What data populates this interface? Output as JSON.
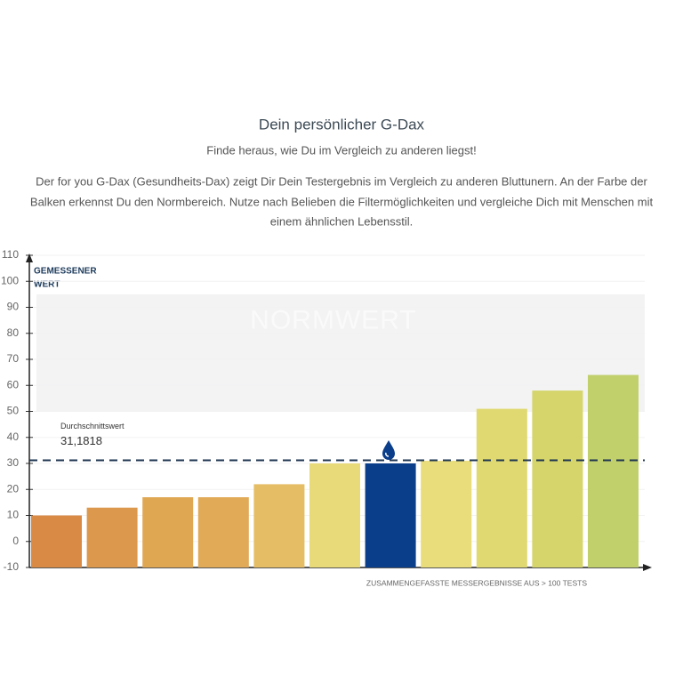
{
  "chart_data": {
    "type": "bar",
    "title": "Dein persönlicher G-Dax",
    "subtitle": "Finde heraus, wie Du im Vergleich zu anderen liegst!",
    "description": [
      "Der for you G-Dax (Gesundheits-Dax) zeigt Dir Dein Testergebnis im Vergleich zu anderen Bluttunern. An der Farbe der",
      "Balken erkennst Du den Normbereich. Nutze nach Belieben die Filtermöglichkeiten und vergleiche Dich mit Menschen mit",
      "einem ähnlichen Lebensstil."
    ],
    "y_label": [
      "GEMESSENER",
      "WERT"
    ],
    "x_label": "ZUSAMMENGEFASSTE MESSERGEBNISSE AUS > 100 TESTS",
    "categories": [
      null,
      null,
      null,
      null,
      null,
      null,
      null,
      null,
      null,
      null,
      null
    ],
    "values": [
      10,
      13,
      17,
      17,
      22,
      30,
      30,
      31,
      51,
      58,
      64
    ],
    "colors": [
      "#d98b45",
      "#dc994d",
      "#e0a753",
      "#e1aa57",
      "#e5bd64",
      "#e8d979",
      "#0a3d8a",
      "#e8dc7b",
      "#e0d971",
      "#d5d56c",
      "#c2d06b"
    ],
    "ylim": [
      -10,
      110
    ],
    "yticks": [
      -10,
      0,
      10,
      20,
      30,
      40,
      50,
      60,
      70,
      80,
      90,
      100,
      110
    ],
    "grid": true,
    "norm_band": {
      "label": "NORMWERT",
      "range": [
        50,
        95
      ]
    },
    "average": {
      "label": "Durchschnittswert",
      "value": 31.1818,
      "value_label": "31,1818"
    }
  }
}
